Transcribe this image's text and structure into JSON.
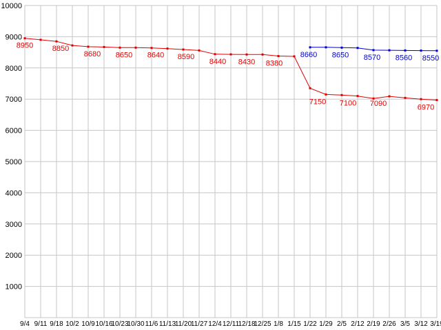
{
  "chart_data": {
    "type": "line",
    "title": "",
    "xlabel": "",
    "ylabel": "",
    "ylim": [
      0,
      10000
    ],
    "ytick_step": 1000,
    "grid": true,
    "legend": "none",
    "colors": {
      "background": "#ffffff",
      "grid": "#c6c6c6",
      "axis_text": "#000000",
      "series_red": "#e00000",
      "series_blue": "#0000cc"
    },
    "y_ticks": [
      "1000",
      "2000",
      "3000",
      "4000",
      "5000",
      "6000",
      "7000",
      "8000",
      "9000",
      "10000"
    ],
    "x_labels": [
      "9/4",
      "9/11",
      "9/18",
      "10/2",
      "10/9",
      "10/16",
      "10/23",
      "10/30",
      "11/6",
      "11/13",
      "11/20",
      "11/27",
      "12/4",
      "12/11",
      "12/18",
      "12/25",
      "1/8",
      "1/15",
      "1/22",
      "1/29",
      "2/5",
      "2/12",
      "2/19",
      "2/26",
      "3/5",
      "3/12",
      "3/19"
    ],
    "series": [
      {
        "name": "red-series",
        "color": "#e00000",
        "values": [
          8950,
          8900,
          8850,
          8720,
          8680,
          8670,
          8650,
          8650,
          8640,
          8620,
          8590,
          8560,
          8440,
          8435,
          8430,
          8430,
          8380,
          8370,
          7350,
          7150,
          7130,
          7100,
          7020,
          7090,
          7040,
          7000,
          6970
        ],
        "point_labels": [
          {
            "i": 0,
            "t": "8950",
            "dx": 0
          },
          {
            "i": 2,
            "t": "8850",
            "dx": 6
          },
          {
            "i": 4,
            "t": "8680",
            "dx": 6
          },
          {
            "i": 6,
            "t": "8650",
            "dx": 6
          },
          {
            "i": 8,
            "t": "8640",
            "dx": 6
          },
          {
            "i": 10,
            "t": "8590",
            "dx": 4
          },
          {
            "i": 12,
            "t": "8440",
            "dx": 4
          },
          {
            "i": 14,
            "t": "8430",
            "dx": 0
          },
          {
            "i": 16,
            "t": "8380",
            "dx": -6
          },
          {
            "i": 19,
            "t": "7150",
            "dx": -12
          },
          {
            "i": 21,
            "t": "7100",
            "dx": -14
          },
          {
            "i": 23,
            "t": "7090",
            "dx": -16
          },
          {
            "i": 26,
            "t": "6970",
            "dx": -16
          }
        ]
      },
      {
        "name": "blue-series",
        "color": "#0000cc",
        "values": [
          null,
          null,
          null,
          null,
          null,
          null,
          null,
          null,
          null,
          null,
          null,
          null,
          null,
          null,
          null,
          null,
          null,
          null,
          8660,
          8660,
          8650,
          8640,
          8570,
          8565,
          8560,
          8555,
          8550
        ],
        "point_labels": [
          {
            "i": 18,
            "t": "8660",
            "dx": -2
          },
          {
            "i": 20,
            "t": "8650",
            "dx": -2
          },
          {
            "i": 22,
            "t": "8570",
            "dx": -2
          },
          {
            "i": 24,
            "t": "8560",
            "dx": -2
          },
          {
            "i": 26,
            "t": "8550",
            "dx": -9
          }
        ]
      }
    ]
  }
}
